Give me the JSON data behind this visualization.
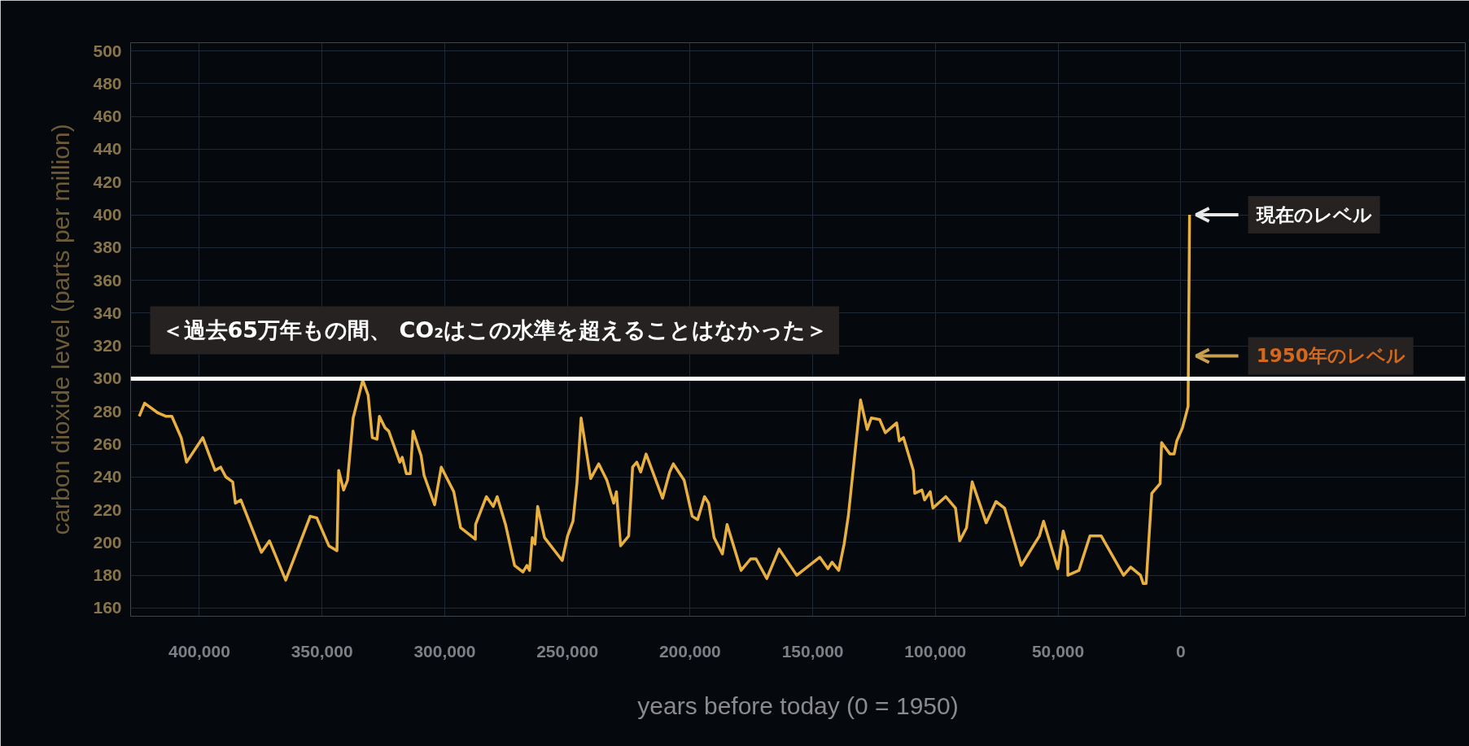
{
  "chart_data": {
    "type": "line",
    "xlabel": "years before today (0 = 1950)",
    "ylabel": "carbon dioxide level (parts per million)",
    "x": [
      424500,
      422300,
      416800,
      413500,
      411200,
      407400,
      405200,
      398600,
      393600,
      391300,
      389200,
      386400,
      385300,
      383100,
      374700,
      371400,
      364800,
      354800,
      352100,
      347200,
      343900,
      343200,
      341200,
      339600,
      337300,
      333400,
      331200,
      329500,
      327600,
      326600,
      324300,
      322800,
      318300,
      317300,
      315600,
      314000,
      312900,
      309600,
      308400,
      304100,
      301400,
      296300,
      293500,
      287500,
      287400,
      283000,
      280200,
      278600,
      275200,
      271500,
      268100,
      266500,
      265400,
      264300,
      263200,
      262100,
      259300,
      252100,
      249900,
      247700,
      246100,
      244400,
      240500,
      237200,
      233900,
      231100,
      230000,
      228300,
      225000,
      223400,
      221700,
      220100,
      217900,
      211200,
      208300,
      206800,
      202400,
      199100,
      196900,
      194100,
      192400,
      190200,
      186800,
      184900,
      179200,
      175300,
      173100,
      168700,
      163700,
      156500,
      147100,
      143800,
      142100,
      139400,
      137200,
      135500,
      130500,
      127800,
      126100,
      122700,
      120400,
      118100,
      115800,
      114700,
      113000,
      109000,
      108400,
      105500,
      104400,
      102100,
      101000,
      95800,
      91800,
      90100,
      87300,
      85000,
      79300,
      75300,
      71800,
      65000,
      57600,
      55900,
      50100,
      47900,
      46100,
      46000,
      41500,
      37000,
      32400,
      23300,
      20400,
      16400,
      15300,
      14100,
      11800,
      8400,
      7800,
      4400,
      2700,
      1600,
      -700,
      -3000,
      -3600
    ],
    "series": [
      {
        "color": "#e8b040",
        "values": [
          277,
          285,
          279,
          277,
          277,
          264,
          249,
          264,
          244,
          246,
          240,
          237,
          224,
          226,
          194,
          201,
          177,
          216,
          215,
          198,
          195,
          244,
          232,
          238,
          276,
          299,
          290,
          264,
          263,
          277,
          270,
          268,
          249,
          252,
          242,
          242,
          268,
          253,
          241,
          223,
          246,
          231,
          209,
          202,
          211,
          228,
          222,
          228,
          211,
          186,
          182,
          186,
          183,
          203,
          199,
          222,
          203,
          189,
          204,
          213,
          236,
          276,
          239,
          248,
          238,
          224,
          231,
          198,
          204,
          246,
          249,
          243,
          254,
          227,
          243,
          248,
          238,
          216,
          214,
          228,
          224,
          203,
          193,
          211,
          183,
          190,
          190,
          178,
          196,
          180,
          191,
          184,
          188,
          183,
          199,
          216,
          287,
          269,
          276,
          275,
          267,
          270,
          273,
          262,
          264,
          244,
          230,
          232,
          226,
          231,
          221,
          228,
          221,
          201,
          209,
          237,
          212,
          225,
          221,
          186,
          204,
          213,
          184,
          207,
          197,
          180,
          183,
          204,
          204,
          180,
          185,
          180,
          175,
          175,
          230,
          236,
          261,
          254,
          254,
          262,
          270,
          283,
          400
        ]
      }
    ],
    "xlim": [
      428000,
      -116000
    ],
    "xticks": [
      {
        "value": 400000,
        "label": "400,000"
      },
      {
        "value": 350000,
        "label": "350,000"
      },
      {
        "value": 300000,
        "label": "300,000"
      },
      {
        "value": 250000,
        "label": "250,000"
      },
      {
        "value": 200000,
        "label": "200,000"
      },
      {
        "value": 150000,
        "label": "150,000"
      },
      {
        "value": 100000,
        "label": "100,000"
      },
      {
        "value": 50000,
        "label": "50,000"
      },
      {
        "value": 0,
        "label": "0"
      }
    ],
    "ylim": [
      155,
      505
    ],
    "yticks": [
      160,
      180,
      200,
      220,
      240,
      260,
      280,
      300,
      320,
      340,
      360,
      380,
      400,
      420,
      440,
      460,
      480,
      500
    ],
    "grid": true,
    "ref_lines": [
      {
        "axis": "y",
        "value": 300,
        "label": "＜過去65万年もの間、 CO₂はこの水準を超えることはなかった＞",
        "color": "#ffffff"
      }
    ],
    "annotations": [
      {
        "text": "現在のレベル",
        "x": -3600,
        "y": 400
      },
      "1950年のレベル"
    ]
  }
}
